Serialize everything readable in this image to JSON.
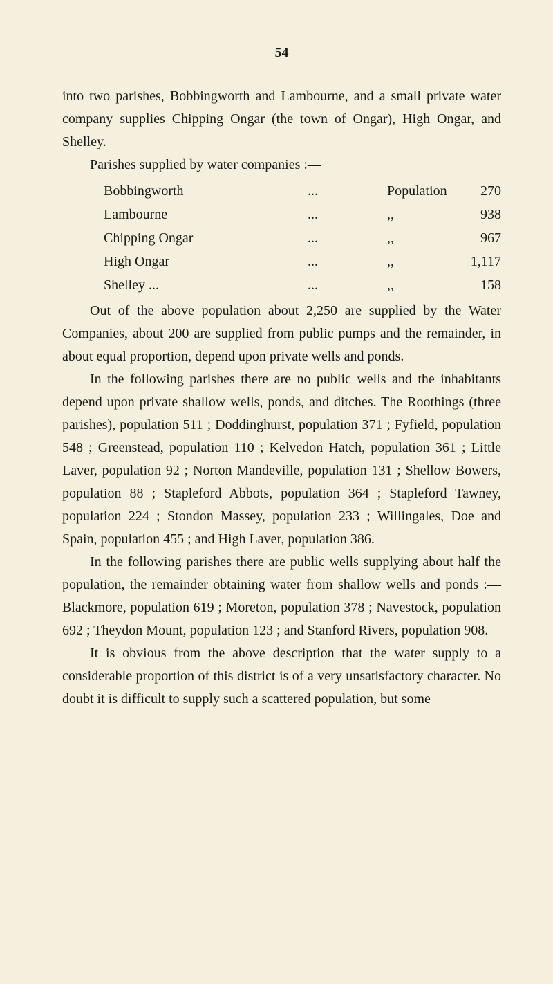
{
  "page_number": "54",
  "para1": "into two parishes, Bobbingworth and Lambourne, and a small private water company supplies Chipping Ongar (the town of Ongar), High Ongar, and Shelley.",
  "para2": "Parishes supplied by water companies :—",
  "parishes": [
    {
      "name": "Bobbingworth",
      "dots": "...",
      "label": "Population",
      "value": "270"
    },
    {
      "name": "Lambourne",
      "dots": "...",
      "label": ",,",
      "value": "938"
    },
    {
      "name": "Chipping Ongar",
      "dots": "...",
      "label": ",,",
      "value": "967"
    },
    {
      "name": "High Ongar",
      "dots": "...",
      "label": ",,",
      "value": "1,117"
    },
    {
      "name": "Shelley       ...",
      "dots": "...",
      "label": ",,",
      "value": "158"
    }
  ],
  "para3": "Out of the above population about 2,250 are supplied by the Water Companies, about 200 are supplied from public pumps and the remainder, in about equal proportion, depend upon private wells and ponds.",
  "para4": "In the following parishes there are no public wells and the inhabitants depend upon private shallow wells, ponds, and ditches. The Roothings (three parishes), population 511 ; Doddinghurst, population 371 ; Fyfield, population 548 ; Greenstead, population 110 ; Kelvedon Hatch, population 361 ; Little Laver, population 92 ; Norton Mandeville, population 131 ; Shellow Bowers, population 88 ; Stapleford Abbots, population 364 ; Stapleford Tawney, population 224 ; Stondon Massey, population 233 ; Willingales, Doe and Spain, population 455 ; and High Laver, population 386.",
  "para5": "In the following parishes there are public wells supplying about half the population, the remainder obtaining water from shallow wells and ponds :—Blackmore, population 619 ; Moreton, population 378 ; Navestock, population 692 ; Theydon Mount, population 123 ; and Stanford Rivers, population 908.",
  "para6": "It is obvious from the above description that the water supply to a considerable proportion of this district is of a very unsatisfactory character. No doubt it is difficult to supply such a scattered population, but some"
}
